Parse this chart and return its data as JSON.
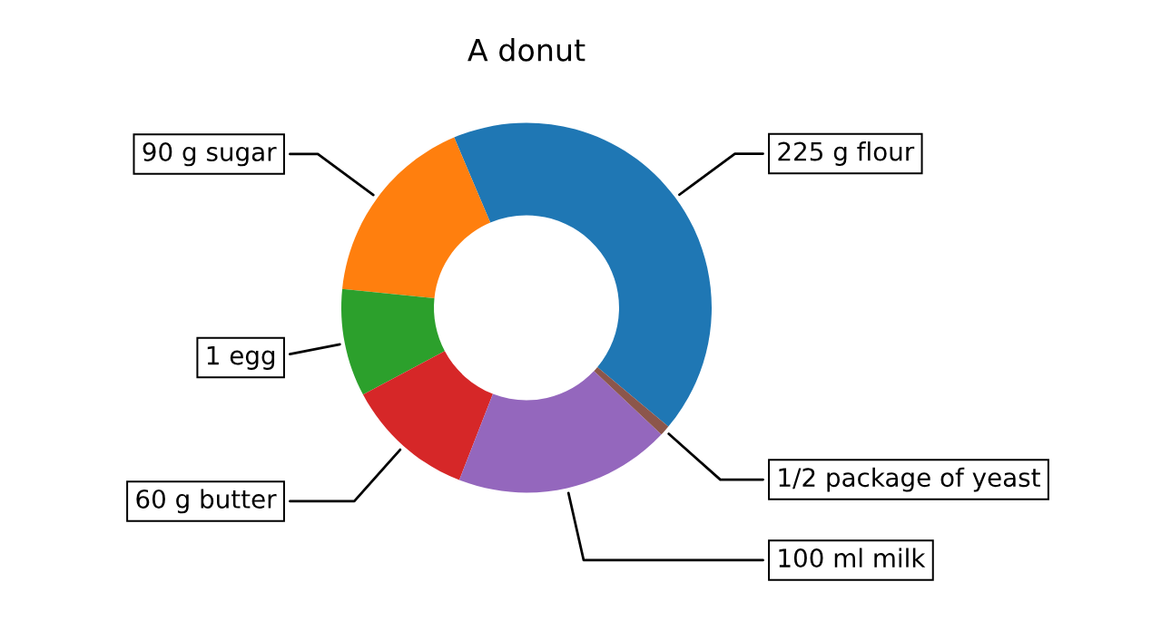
{
  "chart_data": {
    "type": "donut",
    "title": "A donut",
    "categories": [
      "225 g flour",
      "90 g sugar",
      "1 egg",
      "60 g butter",
      "100 ml milk",
      "1/2 package of yeast"
    ],
    "values": [
      42.5,
      17,
      9.4,
      11.3,
      18.9,
      0.9
    ],
    "colors": [
      "#1f77b4",
      "#ff7f0e",
      "#2ca02c",
      "#d62728",
      "#9467bd",
      "#8c564b"
    ]
  }
}
